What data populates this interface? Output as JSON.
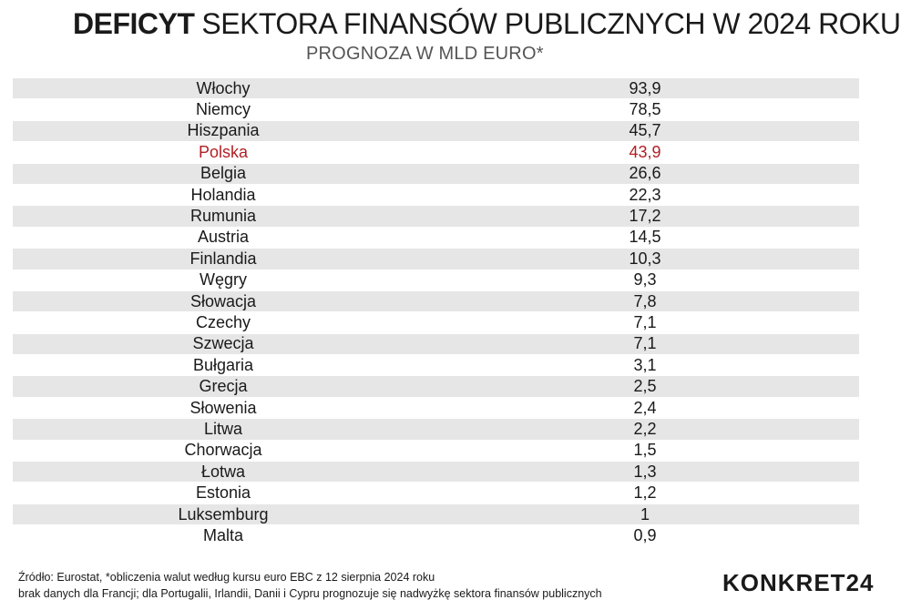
{
  "header": {
    "title_bold": "DEFICYT",
    "title_rest": "SEKTORA FINANSÓW PUBLICZNYCH W 2024 ROKU",
    "subtitle": "PROGNOZA W MLD EURO*"
  },
  "chart_data": {
    "type": "table",
    "title": "DEFICYT SEKTORA FINANSÓW PUBLICZNYCH W 2024 ROKU",
    "subtitle": "PROGNOZA W MLD EURO*",
    "highlight_color": "#b21f24",
    "rows": [
      {
        "country": "Włochy",
        "value": "93,9"
      },
      {
        "country": "Niemcy",
        "value": "78,5"
      },
      {
        "country": "Hiszpania",
        "value": "45,7"
      },
      {
        "country": "Polska",
        "value": "43,9",
        "highlight": true
      },
      {
        "country": "Belgia",
        "value": "26,6"
      },
      {
        "country": "Holandia",
        "value": "22,3"
      },
      {
        "country": "Rumunia",
        "value": "17,2"
      },
      {
        "country": "Austria",
        "value": "14,5"
      },
      {
        "country": "Finlandia",
        "value": "10,3"
      },
      {
        "country": "Węgry",
        "value": "9,3"
      },
      {
        "country": "Słowacja",
        "value": "7,8"
      },
      {
        "country": "Czechy",
        "value": "7,1"
      },
      {
        "country": "Szwecja",
        "value": "7,1"
      },
      {
        "country": "Bułgaria",
        "value": "3,1"
      },
      {
        "country": "Grecja",
        "value": "2,5"
      },
      {
        "country": "Słowenia",
        "value": "2,4"
      },
      {
        "country": "Litwa",
        "value": "2,2"
      },
      {
        "country": "Chorwacja",
        "value": "1,5"
      },
      {
        "country": "Łotwa",
        "value": "1,3"
      },
      {
        "country": "Estonia",
        "value": "1,2"
      },
      {
        "country": "Luksemburg",
        "value": "1"
      },
      {
        "country": "Malta",
        "value": "0,9"
      }
    ]
  },
  "footer": {
    "source": "Źródło: Eurostat, *obliczenia walut według kursu euro EBC z 12 sierpnia 2024 roku",
    "note": "brak danych dla Francji; dla Portugalii, Irlandii, Danii i Cypru prognozuje się nadwyżkę sektora finansów publicznych"
  },
  "brand": {
    "logo": "KONKRET24"
  }
}
